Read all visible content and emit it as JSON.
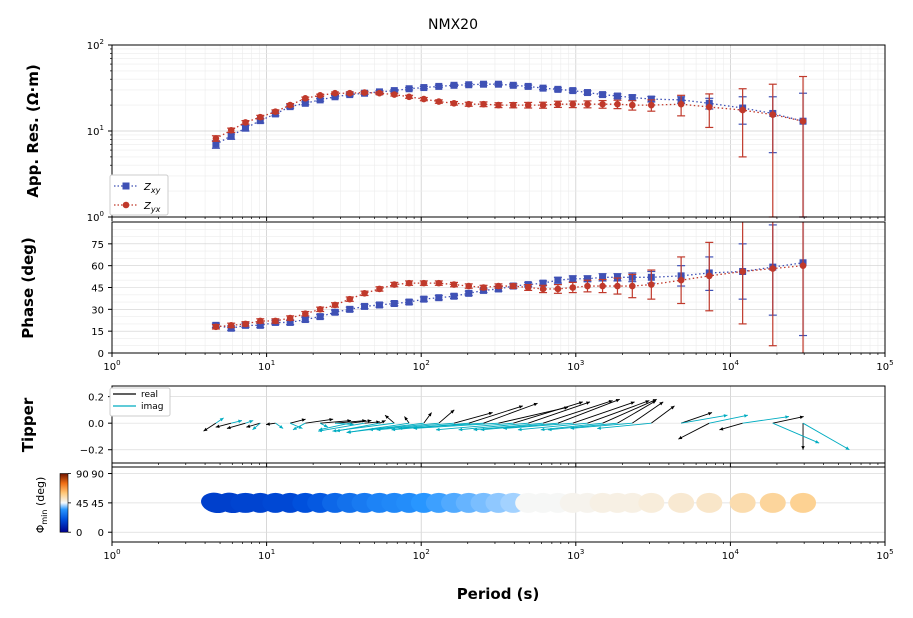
{
  "title": "NMX20",
  "x_axis": {
    "label": "Period (s)",
    "ticks": [
      {
        "value": 1,
        "label": "10",
        "exp": "0"
      },
      {
        "value": 10,
        "label": "10",
        "exp": "1"
      },
      {
        "value": 100,
        "label": "10",
        "exp": "2"
      },
      {
        "value": 1000,
        "label": "10",
        "exp": "3"
      },
      {
        "value": 10000,
        "label": "10",
        "exp": "4"
      },
      {
        "value": 100000,
        "label": "10",
        "exp": "5"
      }
    ]
  },
  "colors": {
    "zxy": "#3f51b5",
    "zyx": "#c0392b",
    "tipper_real": "#000000",
    "tipper_imag": "#00acc1",
    "grid": "#d9d9d9"
  },
  "chart_data": [
    {
      "type": "scatter",
      "panel": "apparent-resistivity",
      "title": "NMX20",
      "ylabel": "App. Res. (Ω·m)",
      "xscale": "log",
      "yscale": "log",
      "xlim": [
        1,
        100000
      ],
      "ylim": [
        1,
        100
      ],
      "yticks": [
        {
          "value": 1,
          "label": "10",
          "exp": "0"
        },
        {
          "value": 10,
          "label": "10",
          "exp": "1"
        },
        {
          "value": 100,
          "label": "10",
          "exp": "2"
        }
      ],
      "grid": true,
      "legend_position": "lower-left",
      "legend": [
        {
          "base": "Z",
          "sub": "xy"
        },
        {
          "base": "Z",
          "sub": "yx"
        }
      ],
      "x": [
        4.7,
        5.9,
        7.3,
        9.1,
        11.4,
        14.2,
        17.8,
        22.2,
        27.7,
        34.5,
        43.0,
        53.7,
        67.0,
        83.5,
        104,
        130,
        163,
        203,
        253,
        316,
        394,
        492,
        614,
        766,
        956,
        1190,
        1490,
        1860,
        2320,
        3080,
        4800,
        7300,
        12000,
        18800,
        29500
      ],
      "series": [
        {
          "name": "Zxy",
          "marker": "square",
          "values": [
            7.0,
            8.8,
            10.8,
            13.2,
            15.8,
            19.2,
            21.0,
            23.0,
            25.0,
            26.5,
            27.5,
            28.5,
            29.5,
            31.0,
            32.0,
            33.0,
            34.0,
            34.5,
            35.0,
            35.0,
            34.0,
            33.0,
            31.5,
            30.5,
            29.5,
            28.0,
            26.5,
            25.5,
            24.5,
            23.5,
            23.0,
            21.0,
            18.5,
            16.0,
            13.0
          ],
          "err_low": [
            6.3,
            8.0,
            10.0,
            12.4,
            15.0,
            18.4,
            20.2,
            22.2,
            24.2,
            25.6,
            26.6,
            27.6,
            28.6,
            30.0,
            31.0,
            32.0,
            33.0,
            33.4,
            33.8,
            33.8,
            32.8,
            31.8,
            30.3,
            29.2,
            28.2,
            26.7,
            25.2,
            24.0,
            22.8,
            21.8,
            21.0,
            18.0,
            12.0,
            5.6,
            1.0
          ],
          "err_high": [
            7.7,
            9.6,
            11.6,
            14.0,
            16.6,
            20.0,
            21.8,
            23.8,
            25.8,
            27.4,
            28.4,
            29.4,
            30.4,
            32.0,
            33.0,
            34.0,
            35.0,
            35.6,
            36.2,
            36.2,
            35.2,
            34.2,
            32.7,
            31.8,
            30.8,
            29.3,
            27.8,
            27.0,
            26.2,
            25.2,
            25.0,
            24.0,
            25.0,
            25.0,
            27.5
          ]
        },
        {
          "name": "Zyx",
          "marker": "circle",
          "values": [
            8.2,
            10.2,
            12.6,
            14.5,
            16.8,
            20.0,
            24.0,
            26.0,
            27.5,
            27.5,
            28.0,
            27.5,
            26.5,
            25.0,
            23.5,
            22.0,
            21.0,
            20.5,
            20.5,
            20.0,
            20.0,
            20.0,
            20.0,
            20.5,
            20.5,
            20.5,
            20.5,
            20.5,
            20.0,
            20.0,
            20.5,
            19.0,
            17.5,
            15.5,
            13.0
          ],
          "err_low": [
            7.6,
            9.6,
            12.0,
            13.8,
            16.0,
            19.2,
            23.2,
            25.2,
            26.6,
            26.6,
            27.0,
            26.5,
            25.5,
            24.0,
            22.5,
            21.0,
            20.0,
            19.4,
            19.2,
            18.7,
            18.6,
            18.5,
            18.4,
            18.8,
            18.7,
            18.6,
            18.4,
            18.2,
            17.5,
            17.0,
            15.0,
            11.0,
            5.0,
            1.0,
            1.0
          ],
          "err_high": [
            8.8,
            10.8,
            13.2,
            15.2,
            17.6,
            20.8,
            24.8,
            26.8,
            28.4,
            28.4,
            29.0,
            28.5,
            27.5,
            26.0,
            24.5,
            23.0,
            22.0,
            21.6,
            21.8,
            21.3,
            21.4,
            21.5,
            21.6,
            22.2,
            22.3,
            22.4,
            22.6,
            22.8,
            22.5,
            23.0,
            26.0,
            27.0,
            31.0,
            35.0,
            43.0
          ]
        }
      ]
    },
    {
      "type": "scatter",
      "panel": "phase",
      "ylabel": "Phase (deg)",
      "xscale": "log",
      "xlim": [
        1,
        100000
      ],
      "ylim": [
        0,
        90
      ],
      "yticks": [
        {
          "value": 0,
          "label": "0"
        },
        {
          "value": 15,
          "label": "15"
        },
        {
          "value": 30,
          "label": "30"
        },
        {
          "value": 45,
          "label": "45"
        },
        {
          "value": 60,
          "label": "60"
        },
        {
          "value": 75,
          "label": "75"
        }
      ],
      "grid": true,
      "x": [
        4.7,
        5.9,
        7.3,
        9.1,
        11.4,
        14.2,
        17.8,
        22.2,
        27.7,
        34.5,
        43.0,
        53.7,
        67.0,
        83.5,
        104,
        130,
        163,
        203,
        253,
        316,
        394,
        492,
        614,
        766,
        956,
        1190,
        1490,
        1860,
        2320,
        3080,
        4800,
        7300,
        12000,
        18800,
        29500
      ],
      "series": [
        {
          "name": "Zxy",
          "marker": "square",
          "values": [
            19,
            17,
            19,
            19,
            21,
            21,
            23,
            25,
            28,
            30,
            32,
            33,
            34,
            35,
            37,
            38,
            39,
            41,
            43,
            44,
            46,
            47,
            48,
            50,
            51,
            51,
            52,
            52,
            52,
            52,
            53,
            55,
            56,
            59,
            62
          ],
          "err_low": [
            17.5,
            15.5,
            17.5,
            17.5,
            19.5,
            19.5,
            21.5,
            23.5,
            26.5,
            28.5,
            30.5,
            31.5,
            32.5,
            33.5,
            35.5,
            36.5,
            37.5,
            39.5,
            41.5,
            42.5,
            44.5,
            45.5,
            46.5,
            48,
            49,
            49,
            49.5,
            49.5,
            49,
            48,
            46,
            43,
            37,
            26,
            12
          ],
          "err_high": [
            20.5,
            18.5,
            20.5,
            20.5,
            22.5,
            22.5,
            24.5,
            26.5,
            29.5,
            31.5,
            33.5,
            34.5,
            35.5,
            36.5,
            38.5,
            39.5,
            40.5,
            42.5,
            44.5,
            45.5,
            47.5,
            48.5,
            49.5,
            52,
            53,
            53,
            54.5,
            54.5,
            55,
            56,
            60,
            66,
            75,
            88,
            90
          ]
        },
        {
          "name": "Zyx",
          "marker": "circle",
          "values": [
            18,
            19,
            20,
            22,
            22,
            24,
            27,
            30,
            33,
            37,
            41,
            44,
            47,
            48,
            48,
            48,
            47,
            46,
            45,
            46,
            46,
            45,
            44,
            44,
            45,
            46,
            46,
            46,
            46,
            47,
            50,
            53,
            56,
            58,
            60
          ],
          "err_low": [
            16.5,
            17.5,
            18.5,
            20.5,
            20.5,
            22.5,
            25.5,
            28.5,
            31.5,
            35.5,
            39.5,
            42.5,
            45.5,
            46.5,
            46.5,
            46.5,
            45.5,
            44.5,
            43.5,
            44.5,
            44.5,
            43,
            41.5,
            41,
            41.5,
            42,
            41.5,
            40.5,
            38,
            37,
            34,
            29,
            20,
            5,
            0
          ],
          "err_high": [
            19.5,
            20.5,
            21.5,
            23.5,
            23.5,
            25.5,
            28.5,
            31.5,
            34.5,
            38.5,
            42.5,
            45.5,
            48.5,
            49.5,
            49.5,
            49.5,
            48.5,
            47.5,
            46.5,
            47.5,
            47.5,
            47,
            46.5,
            47,
            48.5,
            50,
            50.5,
            51.5,
            54,
            57,
            66,
            76,
            90,
            90,
            90
          ]
        }
      ]
    },
    {
      "type": "scatter",
      "panel": "tipper",
      "ylabel": "Tipper",
      "xscale": "log",
      "xlim": [
        1,
        100000
      ],
      "ylim": [
        -0.3,
        0.28
      ],
      "yticks": [
        {
          "value": -0.2,
          "label": "−0.2"
        },
        {
          "value": 0.0,
          "label": "0.0"
        },
        {
          "value": 0.2,
          "label": "0.2"
        }
      ],
      "grid": true,
      "legend_position": "upper-left",
      "legend": [
        "real",
        "imag"
      ],
      "x": [
        4.7,
        5.9,
        7.3,
        9.1,
        11.4,
        14.2,
        17.8,
        22.2,
        27.7,
        34.5,
        43.0,
        53.7,
        67.0,
        83.5,
        104,
        130,
        163,
        203,
        253,
        316,
        394,
        492,
        614,
        766,
        956,
        1190,
        1490,
        1860,
        2320,
        3080,
        4800,
        7300,
        12000,
        18800,
        29500
      ],
      "series": [
        {
          "name": "real",
          "arrow_dx_decades": [
            -0.08,
            -0.1,
            -0.12,
            -0.09,
            -0.06,
            0.1,
            0.18,
            0.2,
            0.2,
            0.14,
            0.1,
            0.04,
            -0.06,
            -0.03,
            0.05,
            0.1,
            0.25,
            0.35,
            0.35,
            0.45,
            0.45,
            0.4,
            0.45,
            0.4,
            0.4,
            0.4,
            0.35,
            0.25,
            0.2,
            0.15,
            0.2,
            -0.2,
            -0.15,
            0.2,
            0.0
          ],
          "arrow_dy": [
            -0.06,
            -0.03,
            -0.04,
            -0.03,
            -0.01,
            0.03,
            0.03,
            0.02,
            0.02,
            0.02,
            0.01,
            0.02,
            0.06,
            0.05,
            0.08,
            0.1,
            0.08,
            0.13,
            0.15,
            0.12,
            0.16,
            0.16,
            0.17,
            0.18,
            0.16,
            0.17,
            0.18,
            0.17,
            0.16,
            0.13,
            0.08,
            -0.12,
            -0.05,
            0.05,
            -0.2
          ]
        },
        {
          "name": "imag",
          "arrow_dx_decades": [
            0.05,
            0.07,
            0.05,
            -0.05,
            0.05,
            0.08,
            -0.08,
            0.05,
            0.12,
            -0.2,
            -0.3,
            -0.28,
            -0.4,
            -0.4,
            -0.5,
            -0.45,
            -0.5,
            -0.5,
            -0.55,
            -0.55,
            -0.5,
            -0.45,
            -0.45,
            -0.5,
            -0.45,
            -0.45,
            -0.4,
            -0.45,
            -0.4,
            -0.35,
            0.3,
            0.25,
            0.3,
            0.3,
            0.3
          ],
          "arrow_dy": [
            0.04,
            0.02,
            0.02,
            -0.05,
            -0.04,
            -0.04,
            -0.05,
            -0.03,
            -0.01,
            -0.05,
            -0.06,
            -0.06,
            -0.06,
            -0.07,
            -0.07,
            -0.05,
            -0.05,
            -0.05,
            -0.04,
            -0.04,
            -0.05,
            -0.05,
            -0.05,
            -0.05,
            -0.04,
            -0.05,
            -0.05,
            -0.05,
            -0.04,
            -0.04,
            0.06,
            0.06,
            0.05,
            -0.15,
            -0.2
          ]
        }
      ]
    },
    {
      "type": "scatter",
      "panel": "phase-tensor",
      "ylabel": "Φmin (deg)",
      "colorbar_label": "Φmin (deg)",
      "xscale": "log",
      "xlim": [
        1,
        100000
      ],
      "ylim": [
        -15,
        100
      ],
      "yticks": [
        {
          "value": 0,
          "label": "0"
        },
        {
          "value": 45,
          "label": "45"
        },
        {
          "value": 90,
          "label": "90"
        }
      ],
      "grid": true,
      "x": [
        4.7,
        5.9,
        7.3,
        9.1,
        11.4,
        14.2,
        17.8,
        22.2,
        27.7,
        34.5,
        43.0,
        53.7,
        67.0,
        83.5,
        104,
        130,
        163,
        203,
        253,
        316,
        394,
        492,
        614,
        766,
        956,
        1190,
        1490,
        1860,
        2320,
        3080,
        4800,
        7300,
        12000,
        18800,
        29500
      ],
      "phimin": [
        16,
        16,
        17,
        17,
        18,
        18,
        20,
        22,
        25,
        27,
        29,
        31,
        32,
        33,
        35,
        36,
        37,
        38,
        39,
        40,
        41,
        46,
        46,
        46,
        47,
        47,
        48,
        48,
        48,
        49,
        50,
        51,
        54,
        56,
        57
      ]
    }
  ]
}
